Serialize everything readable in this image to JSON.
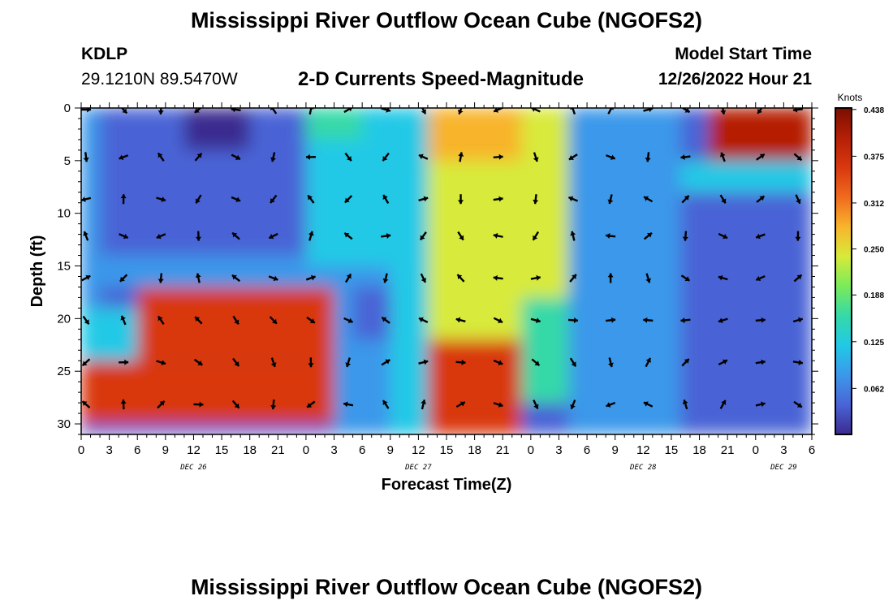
{
  "header": {
    "title": "Mississippi River Outflow Ocean Cube (NGOFS2)",
    "station": "KDLP",
    "coordinates": "29.1210N  89.5470W",
    "subtitle": "2-D Currents Speed-Magnitude",
    "model_start_label": "Model Start Time",
    "model_start_time": "12/26/2022 Hour 21"
  },
  "footer": {
    "title": "Mississippi River Outflow Ocean Cube (NGOFS2)"
  },
  "colors": {
    "colormap": [
      "#3b2a8f",
      "#4a64d6",
      "#3b98ea",
      "#22c9e6",
      "#35d9a8",
      "#7aeb5a",
      "#d8ea3a",
      "#f8b42c",
      "#f06a1e",
      "#d9380e",
      "#b51f06",
      "#7a0e02"
    ]
  },
  "chart_data": {
    "type": "heatmap",
    "title": "2-D Currents Speed-Magnitude",
    "xlabel": "Forecast Time(Z)",
    "ylabel": "Depth (ft)",
    "x_unit": "forecast hour",
    "xlim": [
      0,
      78
    ],
    "ylim": [
      31,
      0
    ],
    "x_ticks": [
      {
        "h": 0,
        "label": "0"
      },
      {
        "h": 3,
        "label": "3"
      },
      {
        "h": 6,
        "label": "6"
      },
      {
        "h": 9,
        "label": "9"
      },
      {
        "h": 12,
        "label": "12"
      },
      {
        "h": 15,
        "label": "15"
      },
      {
        "h": 18,
        "label": "18"
      },
      {
        "h": 21,
        "label": "21"
      },
      {
        "h": 24,
        "label": "0"
      },
      {
        "h": 27,
        "label": "3"
      },
      {
        "h": 30,
        "label": "6"
      },
      {
        "h": 33,
        "label": "9"
      },
      {
        "h": 36,
        "label": "12"
      },
      {
        "h": 39,
        "label": "15"
      },
      {
        "h": 42,
        "label": "18"
      },
      {
        "h": 45,
        "label": "21"
      },
      {
        "h": 48,
        "label": "0"
      },
      {
        "h": 51,
        "label": "3"
      },
      {
        "h": 54,
        "label": "6"
      },
      {
        "h": 57,
        "label": "9"
      },
      {
        "h": 60,
        "label": "12"
      },
      {
        "h": 63,
        "label": "15"
      },
      {
        "h": 66,
        "label": "18"
      },
      {
        "h": 69,
        "label": "21"
      },
      {
        "h": 72,
        "label": "0"
      },
      {
        "h": 75,
        "label": "3"
      },
      {
        "h": 78,
        "label": "6"
      }
    ],
    "y_ticks": [
      0,
      5,
      10,
      15,
      20,
      25,
      30
    ],
    "date_labels": [
      {
        "h": 12,
        "label": "DEC 26"
      },
      {
        "h": 36,
        "label": "DEC 27"
      },
      {
        "h": 60,
        "label": "DEC 28"
      },
      {
        "h": 75,
        "label": "DEC 29"
      }
    ],
    "colorbar": {
      "unit": "Knots",
      "range": [
        0.0,
        0.44
      ],
      "ticks": [
        "0.438",
        "0.375",
        "0.312",
        "0.250",
        "0.188",
        "0.125",
        "0.062"
      ],
      "tick_values": [
        0.438,
        0.375,
        0.312,
        0.25,
        0.188,
        0.125,
        0.062
      ]
    },
    "field_regions": [
      {
        "x": [
          0,
          24
        ],
        "y": [
          0,
          15
        ],
        "speed": 0.04
      },
      {
        "x": [
          11,
          18
        ],
        "y": [
          0,
          4
        ],
        "speed": 0.0
      },
      {
        "x": [
          2,
          5
        ],
        "y": [
          9,
          16
        ],
        "speed": 0.02
      },
      {
        "x": [
          0,
          2
        ],
        "y": [
          0,
          20
        ],
        "speed": 0.08
      },
      {
        "x": [
          0,
          27
        ],
        "y": [
          14,
          17
        ],
        "speed": 0.09
      },
      {
        "x": [
          6,
          27
        ],
        "y": [
          17,
          24
        ],
        "speed": 0.36
      },
      {
        "x": [
          0,
          27
        ],
        "y": [
          24,
          30
        ],
        "speed": 0.36
      },
      {
        "x": [
          0,
          6
        ],
        "y": [
          19,
          24
        ],
        "speed": 0.1
      },
      {
        "x": [
          24,
          33
        ],
        "y": [
          0,
          15
        ],
        "speed": 0.11
      },
      {
        "x": [
          24,
          30
        ],
        "y": [
          0,
          3
        ],
        "speed": 0.16
      },
      {
        "x": [
          27,
          33
        ],
        "y": [
          15,
          31
        ],
        "speed": 0.08
      },
      {
        "x": [
          29,
          33
        ],
        "y": [
          17,
          22
        ],
        "speed": 0.03
      },
      {
        "x": [
          33,
          37
        ],
        "y": [
          0,
          31
        ],
        "speed": 0.1
      },
      {
        "x": [
          37,
          52
        ],
        "y": [
          0,
          22
        ],
        "speed": 0.22
      },
      {
        "x": [
          37,
          47
        ],
        "y": [
          0,
          5
        ],
        "speed": 0.3
      },
      {
        "x": [
          37,
          47
        ],
        "y": [
          22,
          31
        ],
        "speed": 0.34
      },
      {
        "x": [
          47,
          55
        ],
        "y": [
          18,
          28
        ],
        "speed": 0.14
      },
      {
        "x": [
          52,
          64
        ],
        "y": [
          0,
          31
        ],
        "speed": 0.06
      },
      {
        "x": [
          64,
          78
        ],
        "y": [
          8,
          31
        ],
        "speed": 0.05
      },
      {
        "x": [
          69,
          78
        ],
        "y": [
          24,
          31
        ],
        "speed": 0.02
      },
      {
        "x": [
          67,
          78
        ],
        "y": [
          0,
          5
        ],
        "speed": 0.4
      },
      {
        "x": [
          64,
          78
        ],
        "y": [
          5,
          8
        ],
        "speed": 0.1
      }
    ],
    "vector_grid": {
      "x_hours": [
        0,
        4,
        8,
        12,
        16,
        20,
        24,
        28,
        32,
        36,
        40,
        44,
        48,
        52,
        56,
        60,
        64,
        68,
        72,
        76
      ],
      "depths": [
        0,
        4.5,
        8.5,
        12,
        16,
        20,
        24,
        28
      ]
    }
  }
}
